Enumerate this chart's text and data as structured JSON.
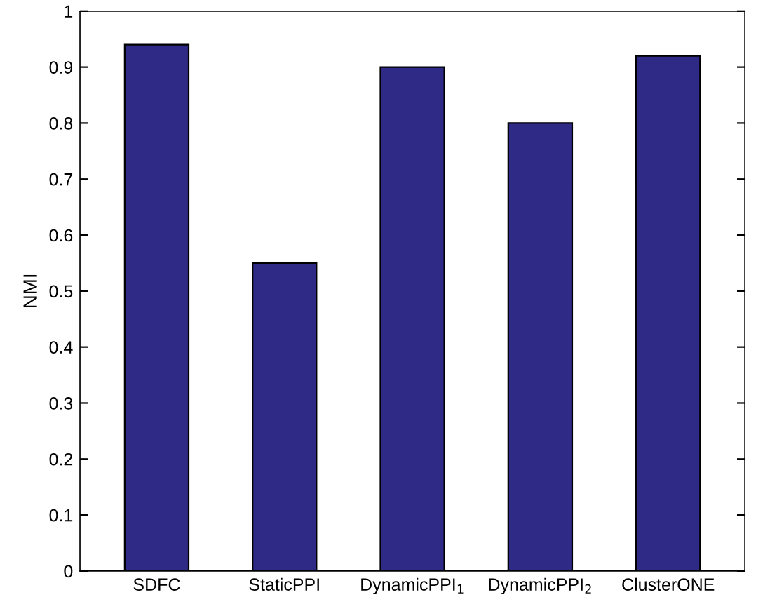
{
  "chart_data": {
    "type": "bar",
    "ylabel": "NMI",
    "categories": [
      "SDFC",
      "StaticPPI",
      "DynamicPPI$_{1}$",
      "DynamicPPI$_{2}$",
      "ClusterONE"
    ],
    "values": [
      0.94,
      0.55,
      0.9,
      0.8,
      0.92
    ],
    "color": "#2e2a86",
    "ylim": [
      0,
      1
    ],
    "yticks": [
      0,
      0.1,
      0.2,
      0.3,
      0.4,
      0.5,
      0.6,
      0.7,
      0.8,
      0.9,
      1
    ],
    "grid": false
  }
}
